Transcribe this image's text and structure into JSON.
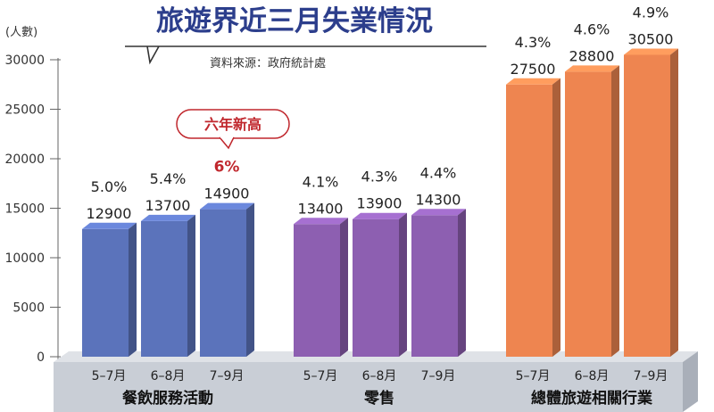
{
  "chart_data": {
    "type": "bar",
    "title": "旅遊界近三月失業情況",
    "source": "資料來源：政府統計處",
    "ylabel": "(人數)",
    "ylim": [
      0,
      30000
    ],
    "yticks": [
      "0",
      "5000",
      "10000",
      "15000",
      "20000",
      "25000",
      "30000"
    ],
    "ytick_values": [
      0,
      5000,
      10000,
      15000,
      20000,
      25000,
      30000
    ],
    "grid": false,
    "callout": "六年新高",
    "groups": [
      {
        "name": "餐飲服務活動",
        "color": "#5b73bb",
        "categories": [
          "5–7月",
          "6–8月",
          "7–9月"
        ],
        "values": [
          12900,
          13700,
          14900
        ],
        "value_labels": [
          "12900",
          "13700",
          "14900"
        ],
        "rates": [
          "5.0%",
          "5.4%",
          "6%"
        ]
      },
      {
        "name": "零售",
        "color": "#8d5fb1",
        "categories": [
          "5–7月",
          "6–8月",
          "7–9月"
        ],
        "values": [
          13400,
          13900,
          14300
        ],
        "value_labels": [
          "13400",
          "13900",
          "14300"
        ],
        "rates": [
          "4.1%",
          "4.3%",
          "4.4%"
        ]
      },
      {
        "name": "總體旅遊相關行業",
        "color": "#ee8550",
        "categories": [
          "5–7月",
          "6–8月",
          "7–9月"
        ],
        "values": [
          27500,
          28800,
          30500
        ],
        "value_labels": [
          "27500",
          "28800",
          "30500"
        ],
        "rates": [
          "4.3%",
          "4.6%",
          "4.9%"
        ]
      }
    ]
  },
  "colors": {
    "title": "#2c3e8c",
    "axis": "#555555",
    "highlight": "#c0272d",
    "base": "#c9ced6"
  }
}
